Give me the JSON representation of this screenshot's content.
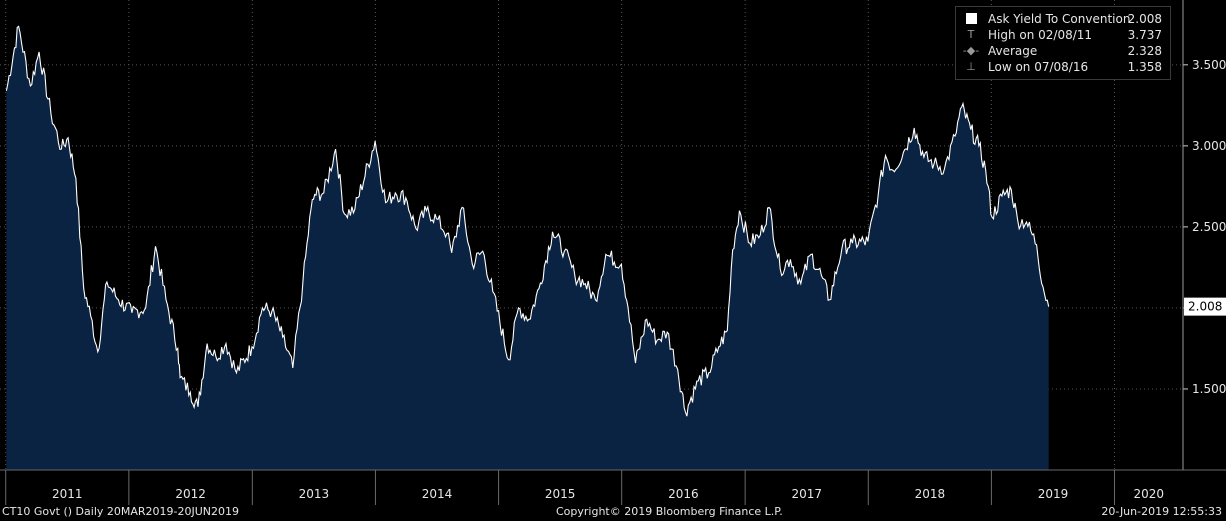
{
  "chart_data": {
    "type": "area",
    "x": [
      "2011-01-03",
      "2011-02-08",
      "2011-03-15",
      "2011-04-10",
      "2011-05-15",
      "2011-06-15",
      "2011-07-05",
      "2011-07-28",
      "2011-08-20",
      "2011-09-10",
      "2011-10-01",
      "2011-10-28",
      "2011-12-01",
      "2012-01-10",
      "2012-02-20",
      "2012-03-20",
      "2012-04-20",
      "2012-05-25",
      "2012-06-01",
      "2012-07-01",
      "2012-07-24",
      "2012-08-20",
      "2012-09-15",
      "2012-10-15",
      "2012-11-15",
      "2012-12-31",
      "2013-01-31",
      "2013-02-28",
      "2013-04-01",
      "2013-05-01",
      "2013-05-31",
      "2013-06-24",
      "2013-07-05",
      "2013-08-01",
      "2013-09-05",
      "2013-10-01",
      "2013-11-01",
      "2013-12-31",
      "2014-01-31",
      "2014-03-01",
      "2014-04-01",
      "2014-05-01",
      "2014-06-01",
      "2014-07-01",
      "2014-08-01",
      "2014-08-15",
      "2014-09-15",
      "2014-10-15",
      "2014-11-15",
      "2014-12-15",
      "2015-01-31",
      "2015-03-01",
      "2015-04-01",
      "2015-05-01",
      "2015-06-10",
      "2015-07-15",
      "2015-08-15",
      "2015-09-15",
      "2015-10-15",
      "2015-11-15",
      "2015-12-31",
      "2016-01-20",
      "2016-02-11",
      "2016-03-15",
      "2016-04-15",
      "2016-05-15",
      "2016-06-15",
      "2016-07-08",
      "2016-08-15",
      "2016-09-15",
      "2016-10-15",
      "2016-11-09",
      "2016-11-25",
      "2016-12-15",
      "2017-01-15",
      "2017-02-15",
      "2017-03-13",
      "2017-04-15",
      "2017-05-15",
      "2017-06-15",
      "2017-07-15",
      "2017-08-15",
      "2017-09-08",
      "2017-10-15",
      "2017-11-15",
      "2017-12-31",
      "2018-01-31",
      "2018-02-21",
      "2018-03-15",
      "2018-04-15",
      "2018-05-17",
      "2018-06-15",
      "2018-07-15",
      "2018-08-15",
      "2018-09-15",
      "2018-10-05",
      "2018-11-01",
      "2018-11-25",
      "2018-12-15",
      "2019-01-03",
      "2019-02-01",
      "2019-03-01",
      "2019-03-20",
      "2019-04-15",
      "2019-05-15",
      "2019-06-03",
      "2019-06-20"
    ],
    "values": [
      3.34,
      3.737,
      3.37,
      3.58,
      3.2,
      2.98,
      3.05,
      2.8,
      2.12,
      1.95,
      1.73,
      2.16,
      2.05,
      1.97,
      2.0,
      2.38,
      2.05,
      1.75,
      1.57,
      1.48,
      1.39,
      1.78,
      1.7,
      1.78,
      1.6,
      1.76,
      2.0,
      1.98,
      1.82,
      1.63,
      2.16,
      2.61,
      2.7,
      2.71,
      2.98,
      2.58,
      2.61,
      3.03,
      2.65,
      2.71,
      2.68,
      2.49,
      2.6,
      2.55,
      2.46,
      2.34,
      2.62,
      2.27,
      2.35,
      2.1,
      1.68,
      2.0,
      1.93,
      2.12,
      2.47,
      2.35,
      2.2,
      2.15,
      2.05,
      2.33,
      2.27,
      2.0,
      1.66,
      1.93,
      1.8,
      1.85,
      1.62,
      1.358,
      1.55,
      1.6,
      1.76,
      1.86,
      2.36,
      2.6,
      2.4,
      2.45,
      2.62,
      2.24,
      2.3,
      2.15,
      2.33,
      2.2,
      2.05,
      2.37,
      2.4,
      2.41,
      2.71,
      2.94,
      2.85,
      2.96,
      3.11,
      2.93,
      2.89,
      2.86,
      3.06,
      3.24,
      3.1,
      3.0,
      2.85,
      2.56,
      2.69,
      2.73,
      2.54,
      2.53,
      2.39,
      2.13,
      2.008
    ],
    "ylim": [
      1.0,
      3.9
    ],
    "y_ticks": [
      "1.500",
      "2.000",
      "2.500",
      "3.000",
      "3.500"
    ],
    "x_ticks": [
      "2011",
      "2012",
      "2013",
      "2014",
      "2015",
      "2016",
      "2017",
      "2018",
      "2019",
      "2020"
    ],
    "last_value_label": "2.008",
    "grid": true,
    "legend_placement": "top-right",
    "colors": {
      "fill": "#0a2342",
      "line": "#ffffff",
      "background": "#000000",
      "grid": "#555555"
    }
  },
  "legend": {
    "series": {
      "label": "Ask Yield To Convention",
      "value": "2.008",
      "marker": "square"
    },
    "high": {
      "label": "High on 02/08/11",
      "value": "3.737",
      "marker": "T"
    },
    "average": {
      "label": "Average",
      "value": "2.328",
      "marker": "-◆-"
    },
    "low": {
      "label": "Low on 07/08/16",
      "value": "1.358",
      "marker": "⊥"
    }
  },
  "footer": {
    "left": "CT10 Govt ()  Daily 20MAR2019-20JUN2019",
    "center": "Copyright© 2019 Bloomberg Finance L.P.",
    "right": "20-Jun-2019 12:55:33"
  }
}
